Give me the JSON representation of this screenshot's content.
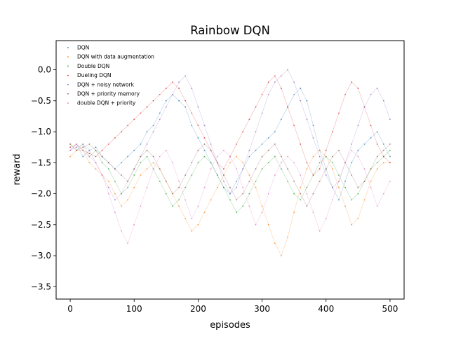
{
  "chart_data": {
    "type": "scatter",
    "title": "Rainbow DQN",
    "xlabel": "episodes",
    "ylabel": "reward",
    "xlim": [
      -22,
      522
    ],
    "ylim": [
      -3.7,
      0.47
    ],
    "x_ticks": [
      0,
      100,
      200,
      300,
      400,
      500
    ],
    "x_tick_labels": [
      "0",
      "100",
      "200",
      "300",
      "400",
      "500"
    ],
    "y_ticks": [
      0.0,
      -0.5,
      -1.0,
      -1.5,
      -2.0,
      -2.5,
      -3.0,
      -3.5
    ],
    "y_tick_labels": [
      "0.0",
      "−0.5",
      "−1.0",
      "−1.5",
      "−2.0",
      "−2.5",
      "−3.0",
      "−3.5"
    ],
    "grid": false,
    "legend_position": "upper-left",
    "episodes": 500,
    "series": [
      {
        "name": "DQN",
        "color": "#1f77b4",
        "values": [
          -1.3,
          -1.2,
          -1.4,
          -1.3,
          -1.25,
          -1.4,
          -1.5,
          -1.6,
          -1.5,
          -1.4,
          -1.3,
          -1.2,
          -1.0,
          -0.9,
          -0.7,
          -0.5,
          -0.4,
          -0.5,
          -0.6,
          -0.9,
          -1.1,
          -1.3,
          -1.5,
          -1.7,
          -1.9,
          -2.0,
          -1.8,
          -1.6,
          -1.4,
          -1.3,
          -1.2,
          -1.1,
          -1.0,
          -0.8,
          -0.6,
          -0.4,
          -0.3,
          -0.5,
          -0.9,
          -1.3,
          -1.6,
          -1.9,
          -2.1,
          -1.8,
          -1.5,
          -1.3,
          -1.2,
          -1.1,
          -1.0,
          -1.2,
          -1.4
        ]
      },
      {
        "name": "DQN with data augmentation",
        "color": "#ff7f0e",
        "values": [
          -1.4,
          -1.3,
          -1.3,
          -1.5,
          -1.6,
          -1.7,
          -1.8,
          -2.0,
          -2.2,
          -2.1,
          -1.9,
          -1.7,
          -1.6,
          -1.5,
          -1.6,
          -1.8,
          -2.0,
          -2.2,
          -2.4,
          -2.6,
          -2.5,
          -2.3,
          -2.1,
          -1.9,
          -1.7,
          -1.5,
          -1.4,
          -1.5,
          -1.7,
          -1.9,
          -2.2,
          -2.5,
          -2.8,
          -3.0,
          -2.7,
          -2.3,
          -1.9,
          -1.6,
          -1.4,
          -1.3,
          -1.4,
          -1.6,
          -1.9,
          -2.2,
          -2.5,
          -2.4,
          -2.1,
          -1.8,
          -1.6,
          -1.5,
          -1.5
        ]
      },
      {
        "name": "Double DQN",
        "color": "#2ca02c",
        "values": [
          -1.2,
          -1.3,
          -1.2,
          -1.4,
          -1.3,
          -1.5,
          -1.6,
          -1.8,
          -2.0,
          -1.9,
          -1.7,
          -1.5,
          -1.4,
          -1.6,
          -1.8,
          -2.0,
          -2.2,
          -2.1,
          -1.9,
          -1.7,
          -1.5,
          -1.4,
          -1.5,
          -1.7,
          -1.9,
          -2.1,
          -2.3,
          -2.2,
          -2.0,
          -1.8,
          -1.6,
          -1.5,
          -1.4,
          -1.6,
          -1.8,
          -2.0,
          -2.1,
          -1.9,
          -1.7,
          -1.5,
          -1.4,
          -1.5,
          -1.7,
          -1.9,
          -2.1,
          -2.0,
          -1.8,
          -1.6,
          -1.5,
          -1.4,
          -1.3
        ]
      },
      {
        "name": "Dueling DQN",
        "color": "#d62728",
        "values": [
          -1.25,
          -1.2,
          -1.3,
          -1.35,
          -1.4,
          -1.3,
          -1.2,
          -1.1,
          -1.0,
          -0.9,
          -0.8,
          -0.7,
          -0.6,
          -0.5,
          -0.4,
          -0.3,
          -0.2,
          -0.3,
          -0.5,
          -0.7,
          -0.9,
          -1.1,
          -1.3,
          -1.5,
          -1.6,
          -1.4,
          -1.2,
          -1.0,
          -0.8,
          -0.6,
          -0.4,
          -0.2,
          -0.1,
          -0.3,
          -0.6,
          -0.9,
          -1.2,
          -1.5,
          -1.7,
          -1.6,
          -1.3,
          -1.0,
          -0.7,
          -0.4,
          -0.2,
          -0.3,
          -0.6,
          -0.9,
          -1.2,
          -1.4,
          -1.5
        ]
      },
      {
        "name": "DQN + noisy network",
        "color": "#9467bd",
        "values": [
          -1.3,
          -1.25,
          -1.2,
          -1.3,
          -1.5,
          -1.7,
          -1.9,
          -2.1,
          -2.0,
          -1.8,
          -1.6,
          -1.4,
          -1.2,
          -1.0,
          -0.8,
          -0.6,
          -0.4,
          -0.2,
          -0.1,
          -0.3,
          -0.6,
          -0.9,
          -1.2,
          -1.5,
          -1.8,
          -2.0,
          -1.9,
          -1.6,
          -1.3,
          -1.0,
          -0.7,
          -0.4,
          -0.2,
          -0.1,
          0.0,
          -0.2,
          -0.5,
          -0.8,
          -1.1,
          -1.4,
          -1.7,
          -1.9,
          -1.8,
          -1.5,
          -1.2,
          -0.9,
          -0.6,
          -0.4,
          -0.3,
          -0.5,
          -0.8
        ]
      },
      {
        "name": "DQN + priority memory",
        "color": "#8c564b",
        "values": [
          -1.2,
          -1.3,
          -1.25,
          -1.2,
          -1.3,
          -1.4,
          -1.5,
          -1.6,
          -1.7,
          -1.8,
          -1.6,
          -1.4,
          -1.3,
          -1.4,
          -1.6,
          -1.8,
          -2.0,
          -1.9,
          -1.7,
          -1.5,
          -1.3,
          -1.2,
          -1.3,
          -1.5,
          -1.7,
          -1.9,
          -2.1,
          -2.0,
          -1.8,
          -1.6,
          -1.4,
          -1.3,
          -1.2,
          -1.4,
          -1.6,
          -1.8,
          -2.0,
          -2.2,
          -2.0,
          -1.8,
          -1.6,
          -1.4,
          -1.3,
          -1.5,
          -1.7,
          -1.9,
          -1.8,
          -1.6,
          -1.4,
          -1.3,
          -1.2
        ]
      },
      {
        "name": "double DQN + priority",
        "color": "#e377c2",
        "values": [
          -1.3,
          -1.2,
          -1.3,
          -1.4,
          -1.5,
          -1.7,
          -2.0,
          -2.3,
          -2.6,
          -2.8,
          -2.5,
          -2.2,
          -1.9,
          -1.6,
          -1.4,
          -1.3,
          -1.5,
          -1.8,
          -2.1,
          -2.4,
          -2.2,
          -1.9,
          -1.6,
          -1.4,
          -1.3,
          -1.4,
          -1.6,
          -1.9,
          -2.2,
          -2.5,
          -2.3,
          -2.0,
          -1.7,
          -1.5,
          -1.4,
          -1.5,
          -1.7,
          -2.0,
          -2.3,
          -2.6,
          -2.4,
          -2.1,
          -1.8,
          -1.5,
          -1.3,
          -1.4,
          -1.6,
          -1.9,
          -2.2,
          -2.0,
          -1.8
        ]
      }
    ]
  }
}
